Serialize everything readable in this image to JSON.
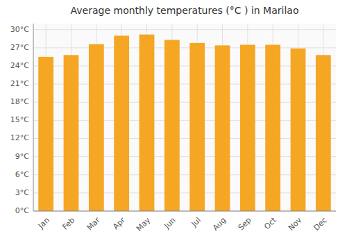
{
  "chart_data": {
    "type": "bar",
    "title": "Average monthly temperatures (°C ) in Marilao",
    "categories": [
      "Jan",
      "Feb",
      "Mar",
      "Apr",
      "May",
      "Jun",
      "Jul",
      "Aug",
      "Sep",
      "Oct",
      "Nov",
      "Dec"
    ],
    "values": [
      25.5,
      25.8,
      27.6,
      29.0,
      29.2,
      28.3,
      27.8,
      27.4,
      27.5,
      27.5,
      26.9,
      25.8
    ],
    "color": "#F5A623",
    "ylim": [
      0,
      31
    ],
    "yticks": [
      {
        "value": 0,
        "label": "0°C"
      },
      {
        "value": 3,
        "label": "3°C"
      },
      {
        "value": 6,
        "label": "6°C"
      },
      {
        "value": 9,
        "label": "9°C"
      },
      {
        "value": 12,
        "label": "12°C"
      },
      {
        "value": 15,
        "label": "15°C"
      },
      {
        "value": 18,
        "label": "18°C"
      },
      {
        "value": 21,
        "label": "21°C"
      },
      {
        "value": 24,
        "label": "24°C"
      },
      {
        "value": 27,
        "label": "27°C"
      },
      {
        "value": 30,
        "label": "30°C"
      }
    ],
    "grid": true
  }
}
